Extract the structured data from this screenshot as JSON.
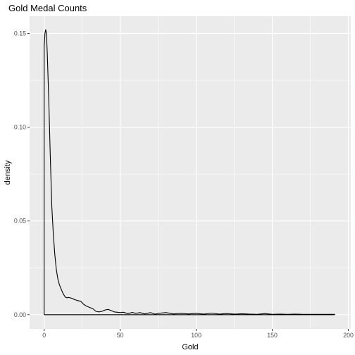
{
  "chart_data": {
    "type": "line",
    "title": "Gold Medal Counts",
    "xlabel": "Gold",
    "ylabel": "density",
    "xlim": [
      -9.6,
      201.6
    ],
    "ylim": [
      -0.0076,
      0.1592
    ],
    "x_ticks": [
      0,
      50,
      100,
      150,
      200
    ],
    "x_tick_labels": [
      "0",
      "50",
      "100",
      "150",
      "200"
    ],
    "y_ticks": [
      0.0,
      0.05,
      0.1,
      0.15
    ],
    "y_tick_labels": [
      "0.00",
      "0.05",
      "0.10",
      "0.15"
    ],
    "grid": true,
    "legend": "none",
    "colors": {
      "panel": "#ebebeb",
      "grid": "#ffffff",
      "line": "#000000",
      "tick_label": "#4d4d4d"
    },
    "series": [
      {
        "x": [
          0,
          0,
          0.5,
          1,
          1.5,
          2,
          3,
          4,
          5,
          6,
          7,
          8,
          9,
          10,
          11,
          12,
          13,
          14,
          15,
          16,
          17,
          18,
          19,
          20,
          21,
          22,
          24,
          26,
          28,
          30,
          32,
          34,
          36,
          38,
          40,
          42,
          44,
          46,
          48,
          50,
          52,
          55,
          58,
          60,
          63,
          66,
          70,
          73,
          76,
          80,
          85,
          90,
          95,
          100,
          105,
          110,
          115,
          120,
          125,
          130,
          135,
          140,
          145,
          150,
          155,
          160,
          165,
          170,
          175,
          180,
          185,
          191,
          191
        ],
        "y": [
          0,
          0.143,
          0.15,
          0.152,
          0.15,
          0.14,
          0.115,
          0.085,
          0.058,
          0.043,
          0.032,
          0.024,
          0.019,
          0.016,
          0.014,
          0.012,
          0.0105,
          0.0093,
          0.009,
          0.0092,
          0.009,
          0.0088,
          0.0085,
          0.008,
          0.0078,
          0.0075,
          0.0072,
          0.0055,
          0.0045,
          0.0038,
          0.0032,
          0.0018,
          0.0015,
          0.0018,
          0.0025,
          0.0028,
          0.0022,
          0.0015,
          0.0013,
          0.0011,
          0.0013,
          0.0006,
          0.0012,
          0.0007,
          0.0011,
          0.0004,
          0.0011,
          0.0003,
          0.0008,
          0.0011,
          0.0004,
          0.0007,
          0.0004,
          0.0007,
          0.0003,
          0.0008,
          0.0003,
          0.0006,
          0.0003,
          0.0005,
          0.0003,
          0.0002,
          0.0006,
          0.0002,
          0.0003,
          0.0002,
          0.0003,
          0.0002,
          0.0002,
          0.0002,
          0.0002,
          0.0002,
          0
        ]
      }
    ]
  }
}
